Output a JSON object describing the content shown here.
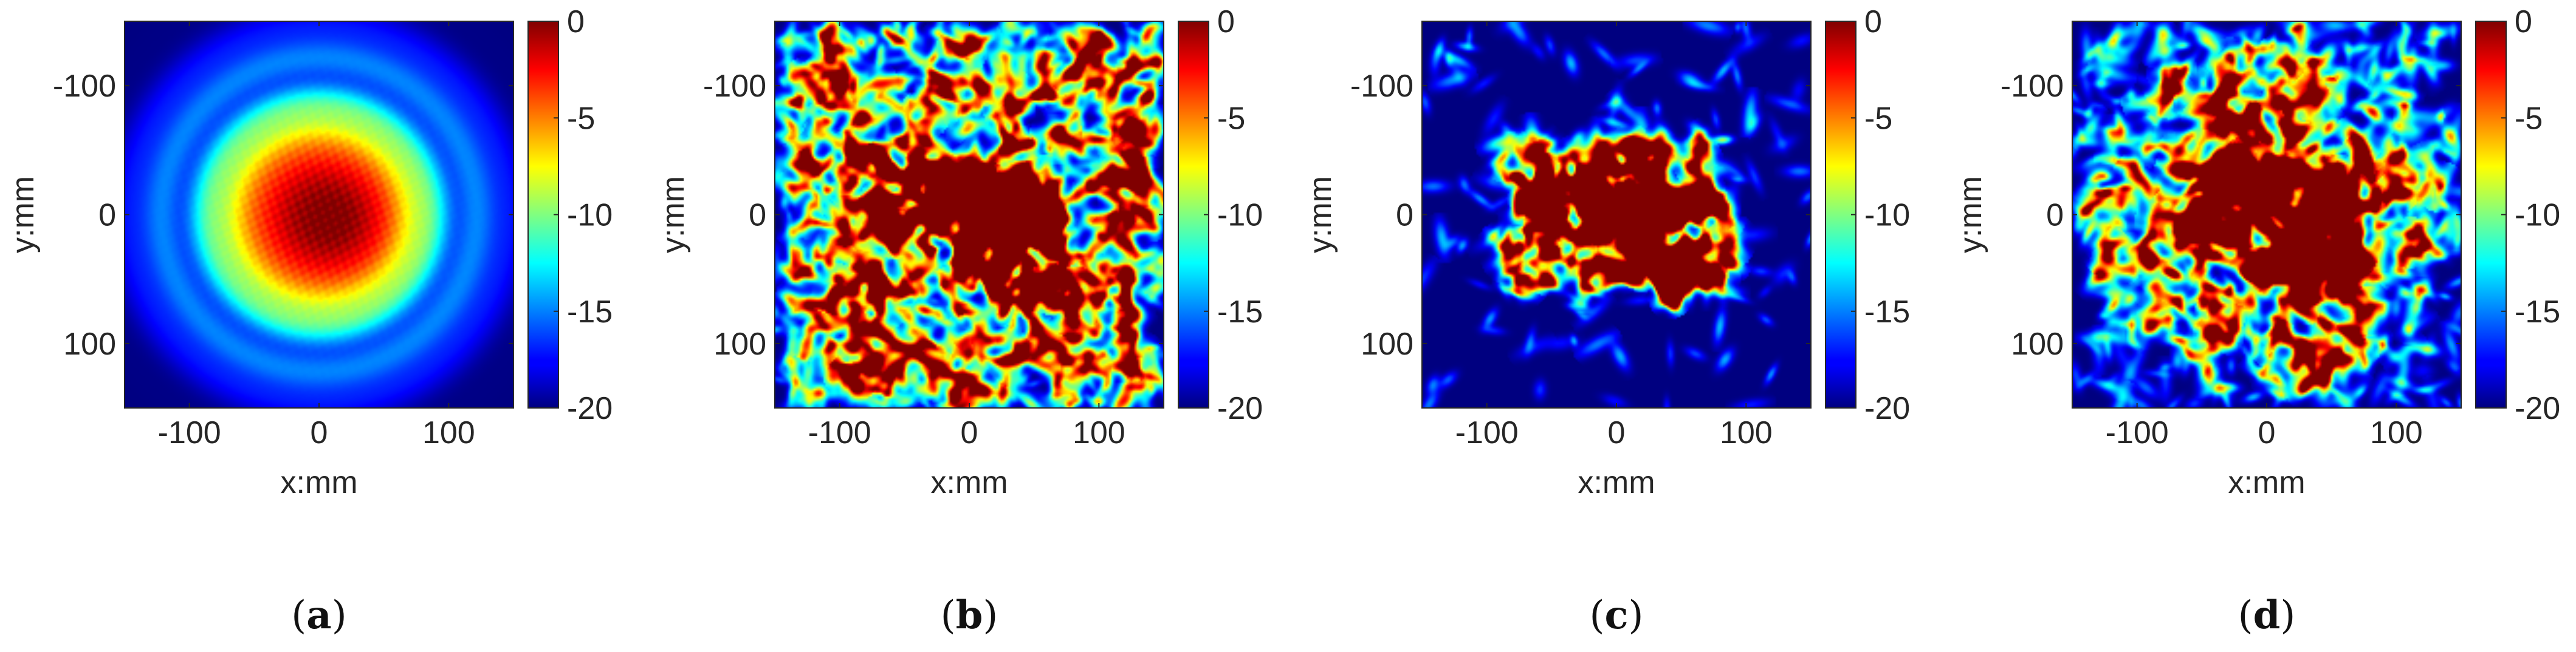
{
  "chart_data": [
    {
      "type": "heatmap",
      "caption_letter": "a",
      "xlabel": "x:mm",
      "ylabel": "y:mm",
      "xlim": [
        -150,
        150
      ],
      "ylim": [
        -150,
        150
      ],
      "y_axis_reversed": true,
      "xticks": [
        -100,
        0,
        100
      ],
      "yticks": [
        -100,
        0,
        100
      ],
      "xtick_labels": [
        "-100",
        "0",
        "100"
      ],
      "ytick_labels": [
        "-100",
        "0",
        "100"
      ],
      "colorbar": {
        "min": -20,
        "max": 0,
        "ticks": [
          0,
          -5,
          -10,
          -15,
          -20
        ],
        "tick_labels": [
          "0",
          "-5",
          "-10",
          "-15",
          "-20"
        ],
        "colormap": "jet"
      },
      "pattern": "smooth"
    },
    {
      "type": "heatmap",
      "caption_letter": "b",
      "xlabel": "x:mm",
      "ylabel": "y:mm",
      "xlim": [
        -150,
        150
      ],
      "ylim": [
        -150,
        150
      ],
      "y_axis_reversed": true,
      "xticks": [
        -100,
        0,
        100
      ],
      "yticks": [
        -100,
        0,
        100
      ],
      "xtick_labels": [
        "-100",
        "0",
        "100"
      ],
      "ytick_labels": [
        "-100",
        "0",
        "100"
      ],
      "colorbar": {
        "min": -20,
        "max": 0,
        "ticks": [
          0,
          -5,
          -10,
          -15,
          -20
        ],
        "tick_labels": [
          "0",
          "-5",
          "-10",
          "-15",
          "-20"
        ],
        "colormap": "jet"
      },
      "pattern": "speckle-wide"
    },
    {
      "type": "heatmap",
      "caption_letter": "c",
      "xlabel": "x:mm",
      "ylabel": "y:mm",
      "xlim": [
        -150,
        150
      ],
      "ylim": [
        -150,
        150
      ],
      "y_axis_reversed": true,
      "xticks": [
        -100,
        0,
        100
      ],
      "yticks": [
        -100,
        0,
        100
      ],
      "xtick_labels": [
        "-100",
        "0",
        "100"
      ],
      "ytick_labels": [
        "-100",
        "0",
        "100"
      ],
      "colorbar": {
        "min": -20,
        "max": 0,
        "ticks": [
          0,
          -5,
          -10,
          -15,
          -20
        ],
        "tick_labels": [
          "0",
          "-5",
          "-10",
          "-15",
          "-20"
        ],
        "colormap": "jet"
      },
      "pattern": "speckle-compact"
    },
    {
      "type": "heatmap",
      "caption_letter": "d",
      "xlabel": "x:mm",
      "ylabel": "y:mm",
      "xlim": [
        -150,
        150
      ],
      "ylim": [
        -150,
        150
      ],
      "y_axis_reversed": true,
      "xticks": [
        -100,
        0,
        100
      ],
      "yticks": [
        -100,
        0,
        100
      ],
      "xtick_labels": [
        "-100",
        "0",
        "100"
      ],
      "ytick_labels": [
        "-100",
        "0",
        "100"
      ],
      "colorbar": {
        "min": -20,
        "max": 0,
        "ticks": [
          0,
          -5,
          -10,
          -15,
          -20
        ],
        "tick_labels": [
          "0",
          "-5",
          "-10",
          "-15",
          "-20"
        ],
        "colormap": "jet"
      },
      "pattern": "speckle-ring"
    }
  ]
}
